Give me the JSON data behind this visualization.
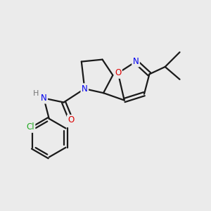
{
  "bg_color": "#ebebeb",
  "bond_color": "#1a1a1a",
  "atom_colors": {
    "N": "#0000ee",
    "O": "#dd0000",
    "Cl": "#22aa22",
    "H": "#777777"
  },
  "line_width": 1.6,
  "font_size": 8.5
}
